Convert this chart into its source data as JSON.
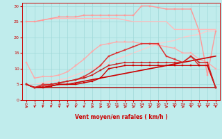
{
  "title": "",
  "xlabel": "Vent moyen/en rafales ( km/h )",
  "bg_color": "#c0ecec",
  "grid_color": "#a0d8d8",
  "xlim": [
    -0.5,
    23.5
  ],
  "ylim": [
    0,
    31
  ],
  "yticks": [
    0,
    5,
    10,
    15,
    20,
    25,
    30
  ],
  "xticks": [
    0,
    1,
    2,
    3,
    4,
    5,
    6,
    7,
    8,
    9,
    10,
    11,
    12,
    13,
    14,
    15,
    16,
    17,
    18,
    19,
    20,
    21,
    22,
    23
  ],
  "series": [
    {
      "x": [
        0,
        1,
        2,
        3,
        4,
        5,
        6,
        7,
        8,
        9,
        10,
        11,
        12,
        13,
        14,
        15,
        16,
        17,
        18,
        19,
        20,
        21,
        22,
        23
      ],
      "y": [
        5,
        4,
        4,
        4,
        4,
        4,
        4,
        4,
        4,
        4,
        4,
        4,
        4,
        4,
        4,
        4,
        4,
        4,
        4,
        4,
        4,
        4,
        4,
        4
      ],
      "color": "#aa0000",
      "lw": 1.0,
      "marker": null,
      "zorder": 3
    },
    {
      "x": [
        0,
        1,
        2,
        3,
        4,
        5,
        6,
        7,
        8,
        9,
        10,
        11,
        12,
        13,
        14,
        15,
        16,
        17,
        18,
        19,
        20,
        21,
        22,
        23
      ],
      "y": [
        5,
        4,
        4,
        4.5,
        5,
        5,
        5.5,
        6,
        6.5,
        7,
        7.5,
        8,
        8.5,
        9,
        9.5,
        10,
        10.5,
        11,
        11.5,
        12,
        12.5,
        13,
        13.5,
        14
      ],
      "color": "#cc0000",
      "lw": 1.2,
      "marker": null,
      "zorder": 3
    },
    {
      "x": [
        0,
        1,
        2,
        3,
        4,
        5,
        6,
        7,
        8,
        9,
        10,
        11,
        12,
        13,
        14,
        15,
        16,
        17,
        18,
        19,
        20,
        21,
        22,
        23
      ],
      "y": [
        5,
        4,
        4,
        4.5,
        5,
        5,
        5,
        5.5,
        6,
        7,
        10,
        10.5,
        11,
        11,
        11,
        11,
        11,
        11,
        11,
        11,
        11,
        11,
        11,
        4
      ],
      "color": "#cc0000",
      "lw": 1.0,
      "marker": "s",
      "markersize": 2,
      "zorder": 4
    },
    {
      "x": [
        0,
        1,
        2,
        3,
        4,
        5,
        6,
        7,
        8,
        9,
        10,
        11,
        12,
        13,
        14,
        15,
        16,
        17,
        18,
        19,
        20,
        21,
        22,
        23
      ],
      "y": [
        5,
        4,
        4.5,
        5,
        5.5,
        6,
        6.5,
        7,
        8,
        9.5,
        11,
        11.5,
        12,
        12,
        12,
        12,
        12,
        12,
        12,
        12,
        14,
        12,
        12,
        4
      ],
      "color": "#cc2222",
      "lw": 1.0,
      "marker": "s",
      "markersize": 2,
      "zorder": 4
    },
    {
      "x": [
        0,
        1,
        2,
        3,
        4,
        5,
        6,
        7,
        8,
        9,
        10,
        11,
        12,
        13,
        14,
        15,
        16,
        17,
        18,
        19,
        20,
        21,
        22,
        23
      ],
      "y": [
        5,
        4,
        5,
        5,
        5.5,
        6,
        6.5,
        7.5,
        9,
        11,
        14,
        15,
        16,
        17,
        18,
        18,
        18,
        14,
        13,
        12,
        14,
        11,
        11,
        4
      ],
      "color": "#dd3333",
      "lw": 1.1,
      "marker": "s",
      "markersize": 2,
      "zorder": 3
    },
    {
      "x": [
        0,
        1,
        2,
        3,
        4,
        5,
        6,
        7,
        8,
        9,
        10,
        11,
        12,
        13,
        14,
        15,
        16,
        17,
        18,
        19,
        20,
        21,
        22,
        23
      ],
      "y": [
        25,
        25,
        25.5,
        26,
        26,
        26,
        26,
        26,
        26,
        26,
        26,
        26,
        25.5,
        25,
        25,
        25,
        25,
        25,
        22.5,
        22.5,
        22.5,
        22.5,
        22.5,
        22.5
      ],
      "color": "#ffbbbb",
      "lw": 1.0,
      "marker": null,
      "zorder": 2
    },
    {
      "x": [
        0,
        1,
        2,
        3,
        4,
        5,
        6,
        7,
        8,
        9,
        10,
        11,
        12,
        13,
        14,
        15,
        16,
        17,
        18,
        19,
        20,
        21,
        22,
        23
      ],
      "y": [
        12,
        7,
        7.5,
        7.5,
        8,
        9,
        11,
        13,
        15.5,
        17.5,
        18,
        18.5,
        18.5,
        18.5,
        18,
        18,
        17.5,
        17,
        16.5,
        15,
        15,
        13,
        12,
        10
      ],
      "color": "#ffaaaa",
      "lw": 1.0,
      "marker": "s",
      "markersize": 2,
      "zorder": 2
    },
    {
      "x": [
        0,
        1,
        2,
        3,
        4,
        5,
        6,
        7,
        8,
        9,
        10,
        11,
        12,
        13,
        14,
        15,
        16,
        17,
        18,
        19,
        20,
        21,
        22,
        23
      ],
      "y": [
        5,
        5,
        5.5,
        6,
        6.5,
        7,
        8,
        9,
        10,
        11,
        12,
        13,
        14,
        15,
        16,
        17,
        18,
        18.5,
        19,
        20,
        20.5,
        21,
        22,
        22
      ],
      "color": "#ffcccc",
      "lw": 1.0,
      "marker": null,
      "zorder": 1
    },
    {
      "x": [
        0,
        1,
        2,
        3,
        4,
        5,
        6,
        7,
        8,
        9,
        10,
        11,
        12,
        13,
        14,
        15,
        16,
        17,
        18,
        19,
        20,
        21,
        22,
        23
      ],
      "y": [
        25,
        25,
        25.5,
        26,
        26.5,
        26.5,
        26.5,
        27,
        27,
        27,
        27,
        27,
        27,
        27,
        30,
        30,
        29.5,
        29,
        29,
        29,
        29,
        22,
        8,
        22
      ],
      "color": "#ff9999",
      "lw": 1.0,
      "marker": "s",
      "markersize": 2,
      "zorder": 2
    }
  ],
  "wind_arrows": {
    "x": [
      0,
      1,
      2,
      3,
      4,
      5,
      6,
      7,
      8,
      9,
      10,
      11,
      12,
      13,
      14,
      15,
      16,
      17,
      18,
      19,
      20,
      21,
      22,
      23
    ],
    "directions": [
      "r",
      "d",
      "d",
      "d",
      "d",
      "d",
      "d",
      "d",
      "r",
      "r",
      "r",
      "r",
      "r",
      "r",
      "r",
      "r",
      "r",
      "r",
      "d",
      "r",
      "d",
      "d",
      "d",
      "d"
    ],
    "color": "#cc0000"
  }
}
